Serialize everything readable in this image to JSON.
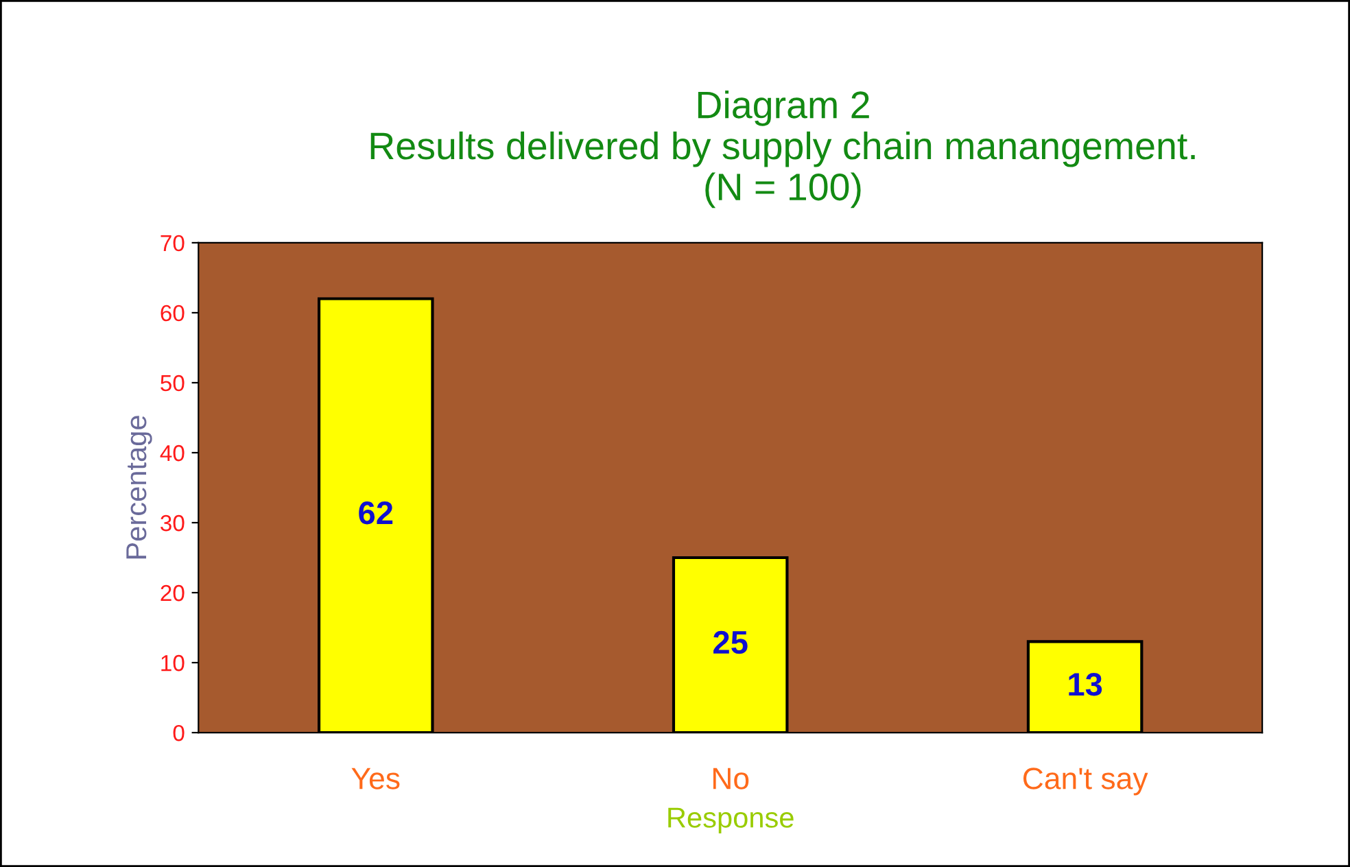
{
  "chart_data": {
    "type": "bar",
    "title": "Diagram 2\nResults delivered by supply chain manangement.\n(N = 100)",
    "xlabel": "Response",
    "ylabel": "Percentage",
    "categories": [
      "Yes",
      "No",
      "Can't say"
    ],
    "values": [
      62,
      25,
      13
    ],
    "color": "#ffff00",
    "ylim": [
      0,
      70
    ],
    "yticks": [
      0,
      10,
      20,
      30,
      40,
      50,
      60,
      70
    ],
    "data_labels": true,
    "grid": false,
    "legend": false
  }
}
